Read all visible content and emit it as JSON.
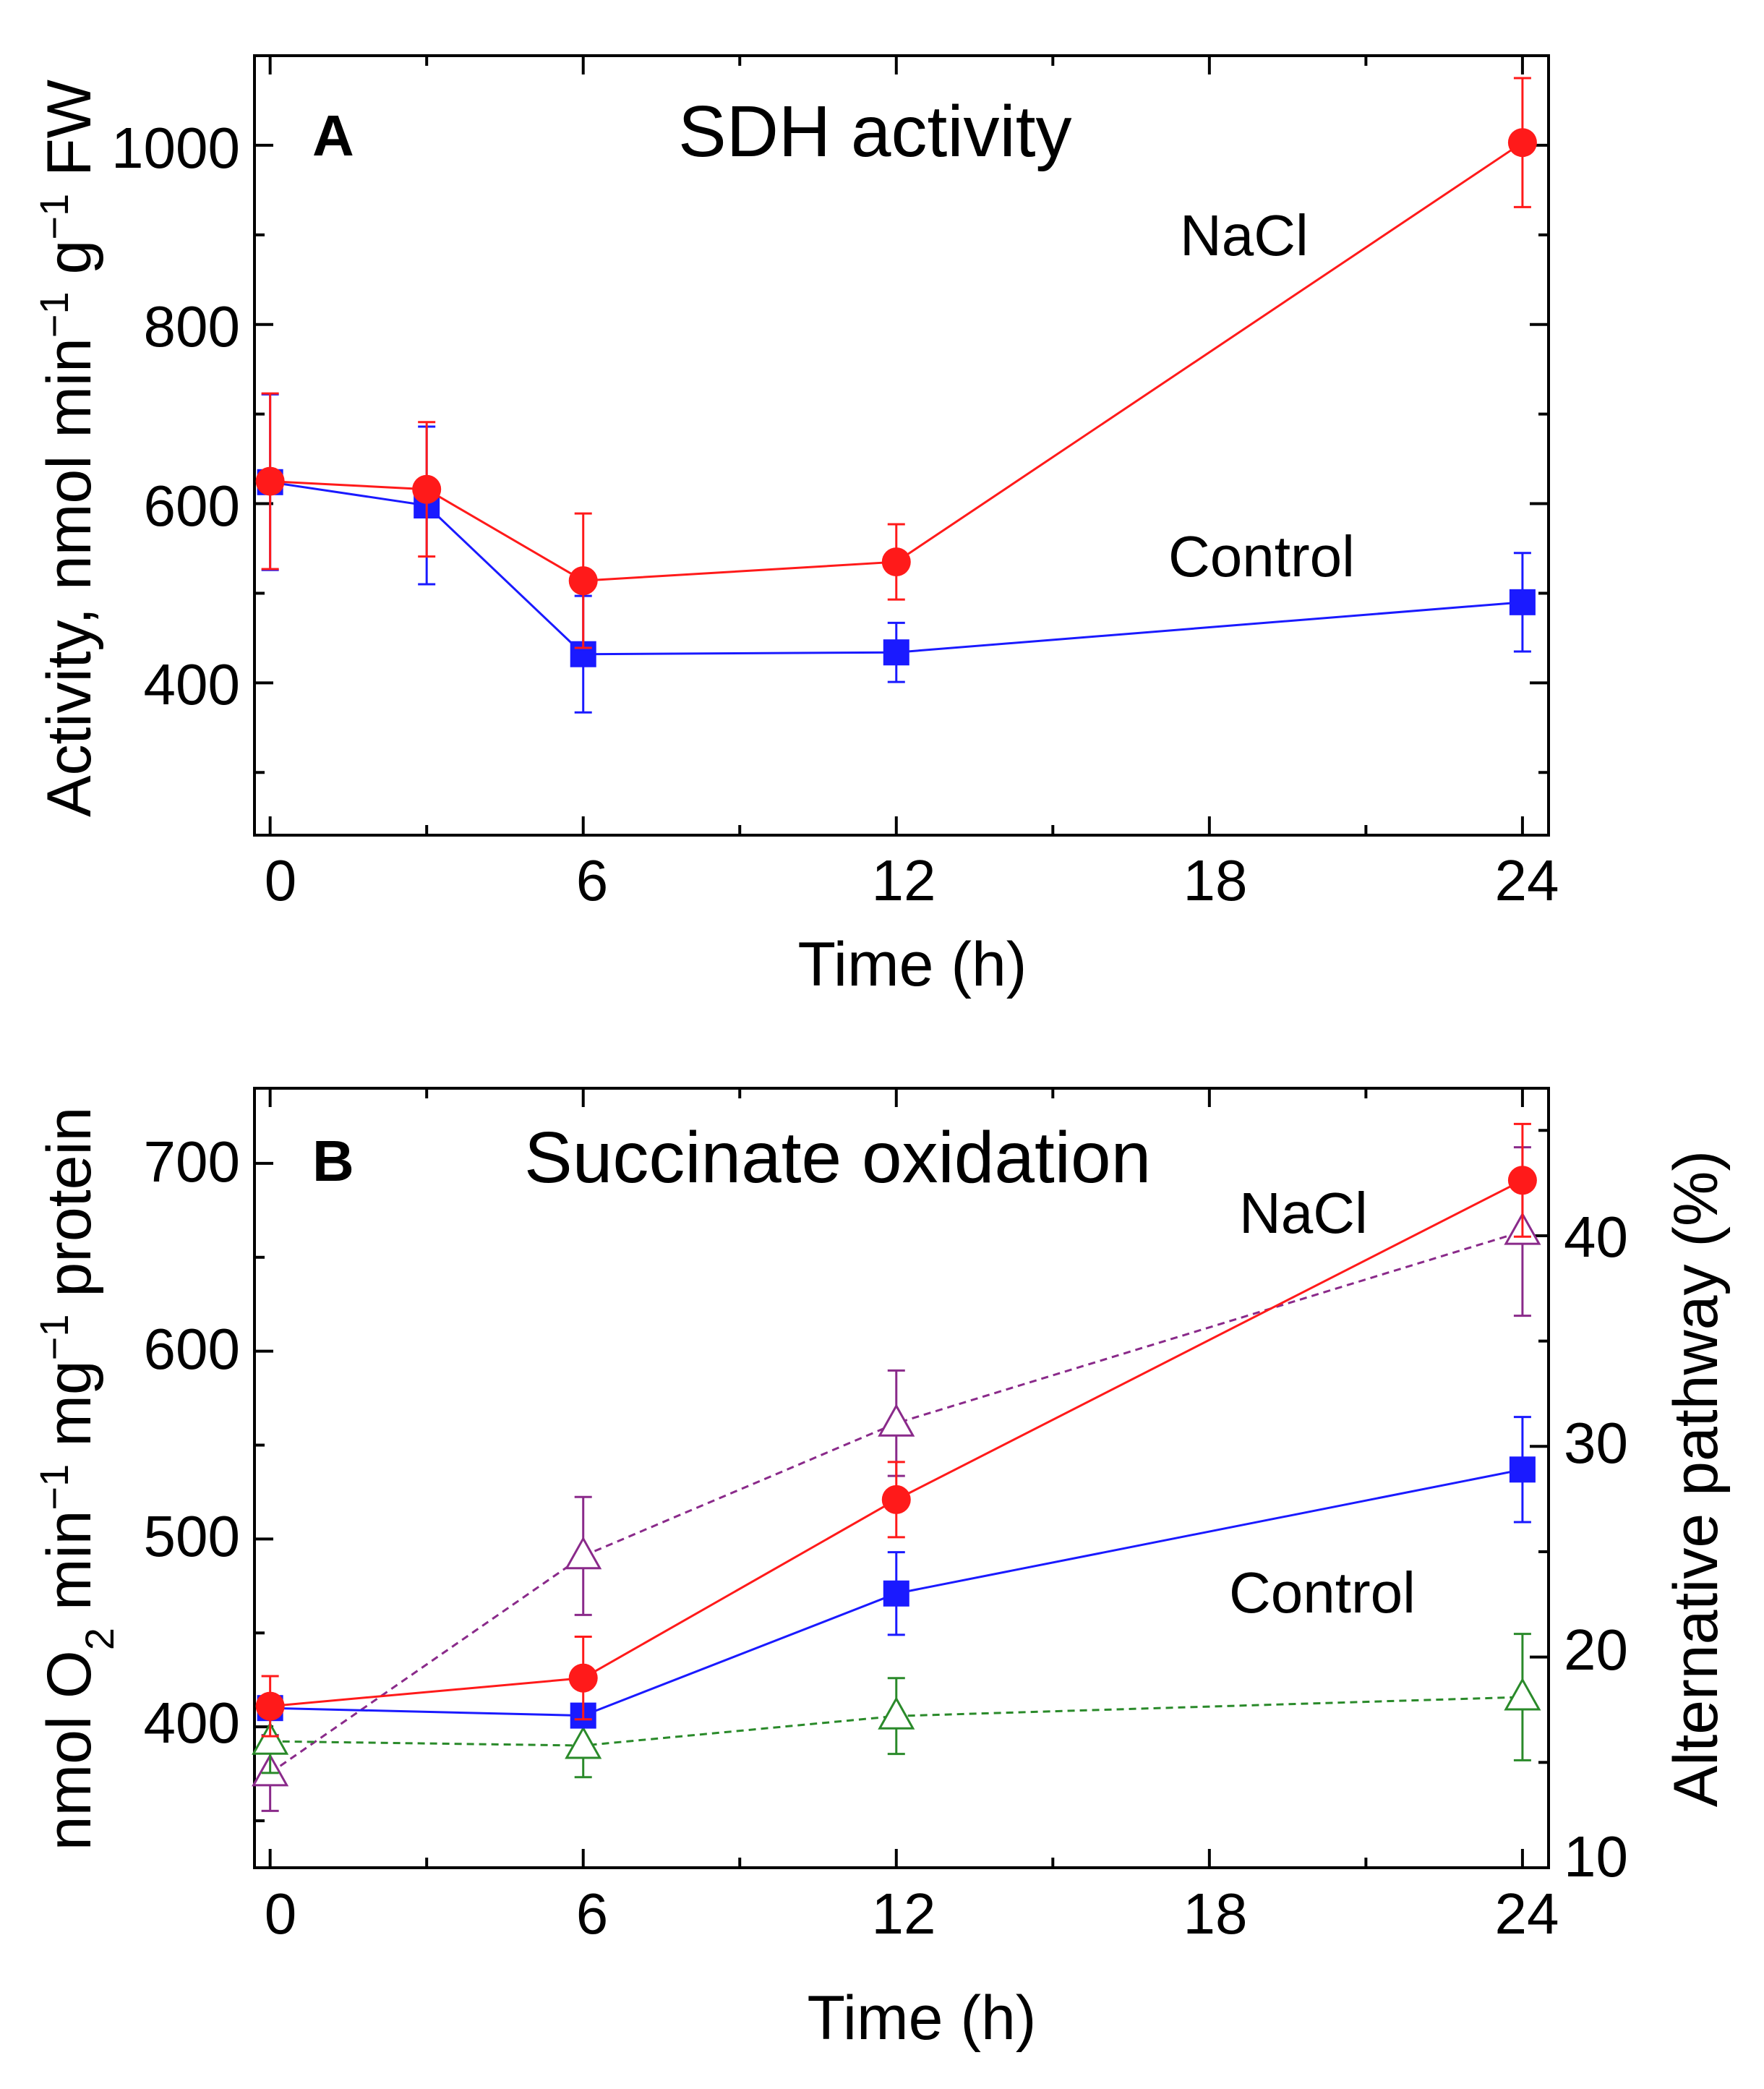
{
  "chart_data": [
    {
      "type": "line",
      "panel": "A",
      "title": "SDH activity",
      "xlabel": "Time (h)",
      "ylabel": "Activity, nmol min",
      "ylabel_unit": "g",
      "ylabel_tail": "FW",
      "ylabel_sup": "−1",
      "xlim": [
        -0.3,
        24.5
      ],
      "ylim": [
        230,
        1100
      ],
      "xticks": [
        0,
        6,
        12,
        18,
        24
      ],
      "yticks": [
        400,
        600,
        800,
        1000
      ],
      "yminor": [
        300,
        500,
        700,
        900
      ],
      "series": [
        {
          "name": "NaCl",
          "color": "#ff1a1a",
          "marker": "circle",
          "x": [
            0,
            3,
            6,
            12,
            24
          ],
          "y": [
            625,
            616,
            514,
            535,
            1003
          ],
          "err": [
            98,
            75,
            75,
            42,
            72
          ]
        },
        {
          "name": "Control",
          "color": "#1a1aff",
          "marker": "square",
          "x": [
            0,
            3,
            6,
            12,
            24
          ],
          "y": [
            624,
            598,
            432,
            434,
            490
          ],
          "err": [
            98,
            88,
            65,
            33,
            55
          ]
        }
      ],
      "annotations": [
        "NaCl",
        "Control"
      ]
    },
    {
      "type": "line",
      "panel": "B",
      "title": "Succinate oxidation",
      "xlabel": "Time (h)",
      "ylabel_left": "nmol O",
      "ylabel_left_sub": "2",
      "ylabel_left_mid": " min",
      "ylabel_left_mg": " mg",
      "ylabel_left_tail": " protein",
      "ylabel_left_sup": "−1",
      "ylabel_right": "Alternative pathway (%)",
      "xlim": [
        -0.3,
        24.5
      ],
      "ylim_left": [
        325,
        740
      ],
      "ylim_right": [
        10,
        47
      ],
      "xticks": [
        0,
        6,
        12,
        18,
        24
      ],
      "yticks_left": [
        400,
        500,
        600,
        700
      ],
      "yminor_left": [
        350,
        450,
        550,
        650
      ],
      "yticks_right": [
        10,
        20,
        30,
        40
      ],
      "yminor_right": [
        15,
        25,
        35,
        45
      ],
      "series": [
        {
          "name": "NaCl",
          "axis": "left",
          "color": "#ff1a1a",
          "marker": "circle",
          "dashed": false,
          "x": [
            0,
            6,
            12,
            24
          ],
          "y": [
            411,
            426,
            521,
            691
          ],
          "err": [
            16,
            22,
            20,
            30
          ]
        },
        {
          "name": "Control",
          "axis": "left",
          "color": "#1a1aff",
          "marker": "square",
          "dashed": false,
          "x": [
            0,
            6,
            12,
            24
          ],
          "y": [
            410,
            406,
            471,
            537
          ],
          "err": [
            0,
            0,
            22,
            28
          ]
        },
        {
          "name": "Alternative pathway NaCl",
          "axis": "right",
          "color": "#8a2a8a",
          "marker": "triangle-open",
          "dashed": true,
          "x": [
            0,
            6,
            12,
            24
          ],
          "y": [
            14.5,
            24.8,
            31.1,
            40.2
          ],
          "err": [
            1.8,
            2.8,
            2.5,
            4.0
          ]
        },
        {
          "name": "Alternative pathway Control",
          "axis": "right",
          "color": "#2a8a2a",
          "marker": "triangle-open",
          "dashed": true,
          "x": [
            0,
            6,
            12,
            24
          ],
          "y": [
            16.0,
            15.8,
            17.2,
            18.1
          ],
          "err": [
            1.5,
            1.5,
            1.8,
            3.0
          ]
        }
      ],
      "annotations": [
        "NaCl",
        "Control"
      ]
    }
  ]
}
